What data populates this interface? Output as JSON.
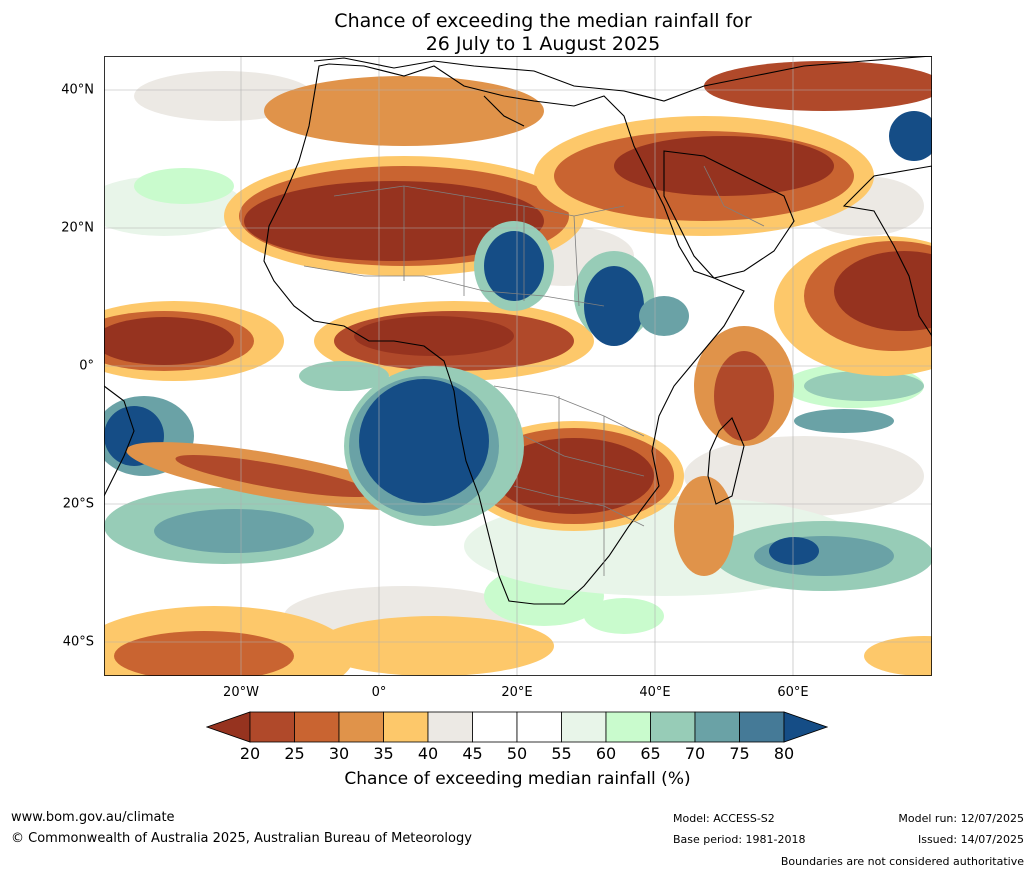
{
  "title": {
    "line1": "Chance of exceeding the median rainfall for",
    "line2": "26 July to 1 August 2025"
  },
  "map": {
    "lat_labels": [
      "40°N",
      "20°N",
      "0°",
      "20°S",
      "40°S"
    ],
    "lon_labels": [
      "20°W",
      "0°",
      "20°E",
      "40°E",
      "60°E"
    ],
    "colors": {
      "ocean_base": "#ffffff",
      "coast": "#000000",
      "borders": "#7f7f7f",
      "grid": "#b0b0b0"
    }
  },
  "legend": {
    "label": "Chance of exceeding median rainfall (%)",
    "ticks": [
      "20",
      "25",
      "30",
      "35",
      "40",
      "45",
      "50",
      "55",
      "60",
      "65",
      "70",
      "75",
      "80"
    ],
    "colors": [
      "#96331f",
      "#b0492a",
      "#c96431",
      "#e0934a",
      "#fdc86a",
      "#ece9e4",
      "#ffffff",
      "#ffffff",
      "#e8f5e9",
      "#c9fbcd",
      "#97ccb7",
      "#6aa2a6",
      "#457a97",
      "#154d86"
    ]
  },
  "footer": {
    "website": "www.bom.gov.au/climate",
    "copyright": "© Commonwealth of Australia 2025, Australian Bureau of Meteorology",
    "model": "Model: ACCESS-S2",
    "base_period": "Base period: 1981-2018",
    "model_run": "Model run: 12/07/2025",
    "issued": "Issued: 14/07/2025",
    "disclaimer": "Boundaries are not considered authoritative"
  }
}
